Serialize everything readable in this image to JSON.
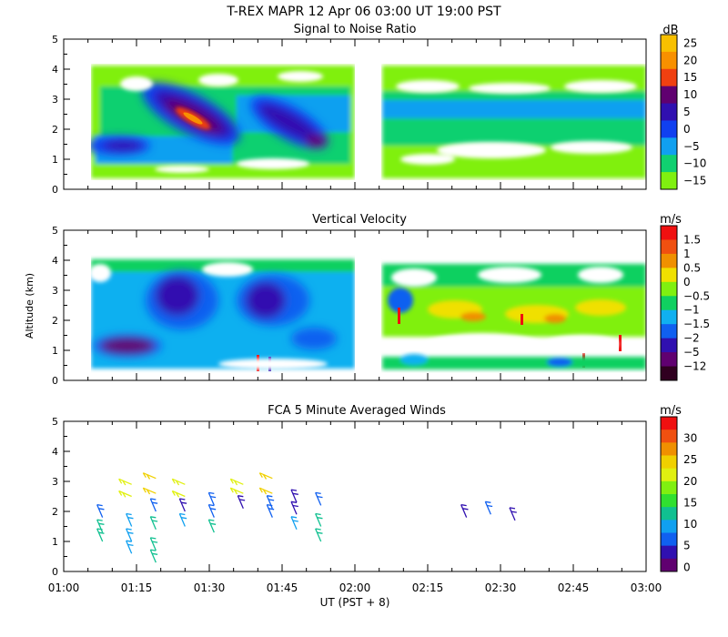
{
  "figure": {
    "title": "T-REX  MAPR 12 Apr 06  03:00 UT  19:00  PST",
    "xlabel": "UT  (PST + 8)",
    "ylabel": "Altitude (km)",
    "x_ticks": [
      "01:00",
      "01:15",
      "01:30",
      "01:45",
      "02:00",
      "02:15",
      "02:30",
      "02:45",
      "03:00"
    ]
  },
  "chart_data": [
    {
      "type": "heatmap",
      "title": "Signal to Noise Ratio",
      "colorbar_unit": "dB",
      "colorbar_ticks": [
        "25",
        "20",
        "15",
        "10",
        "5",
        "0",
        "−5",
        "−10",
        "−15"
      ],
      "colorbar_colors": [
        "#f8c000",
        "#f89000",
        "#f04010",
        "#600070",
        "#3010b0",
        "#1040f0",
        "#10a0f0",
        "#10d070",
        "#80f010"
      ],
      "ylim": [
        0,
        5
      ],
      "y_ticks": [
        "0",
        "1",
        "2",
        "3",
        "4",
        "5"
      ],
      "x_range": [
        "01:00",
        "03:00"
      ],
      "data_gap": [
        "01:59",
        "02:05"
      ],
      "features": [
        {
          "label": "peak",
          "time": "01:22",
          "altitude_km": 2.3,
          "value_db": 18
        },
        {
          "label": "peak",
          "time": "01:40",
          "altitude_km": 2.5,
          "value_db": 7
        },
        {
          "label": "peak",
          "time": "01:08",
          "altitude_km": 1.4,
          "value_db": 6
        }
      ]
    },
    {
      "type": "heatmap",
      "title": "Vertical Velocity",
      "colorbar_unit": "m/s",
      "colorbar_ticks": [
        "1.5",
        "1",
        "0.5",
        "0",
        "−0.5",
        "−1",
        "−1.5",
        "−2",
        "−5",
        "−12"
      ],
      "colorbar_colors": [
        "#f01010",
        "#f05010",
        "#f09000",
        "#f0e000",
        "#80f010",
        "#10d060",
        "#10b0f0",
        "#1060f0",
        "#3010b0",
        "#600070",
        "#300020"
      ],
      "ylim": [
        0,
        5
      ],
      "y_ticks": [
        "0",
        "1",
        "2",
        "3",
        "4",
        "5"
      ],
      "x_range": [
        "01:00",
        "03:00"
      ],
      "data_gap": [
        "01:59",
        "02:05"
      ]
    },
    {
      "type": "scatter",
      "title": "FCA 5 Minute Averaged Winds",
      "colorbar_unit": "m/s",
      "colorbar_ticks": [
        "30",
        "25",
        "20",
        "15",
        "10",
        "5",
        "0"
      ],
      "colorbar_colors": [
        "#f01010",
        "#f05010",
        "#f09000",
        "#f0d000",
        "#e0f010",
        "#80f010",
        "#30e030",
        "#10c090",
        "#10a0f0",
        "#1060f0",
        "#3010b0",
        "#600070"
      ],
      "ylim": [
        0,
        5
      ],
      "y_ticks": [
        "0",
        "1",
        "2",
        "3",
        "4",
        "5"
      ],
      "x_range": [
        "01:00",
        "03:00"
      ],
      "barb_columns": [
        {
          "time": "01:08",
          "altitudes_km": [
            1.8,
            1.3,
            1.0
          ]
        },
        {
          "time": "01:14",
          "altitudes_km": [
            2.9,
            2.5,
            1.5,
            1.0,
            0.6
          ]
        },
        {
          "time": "01:19",
          "altitudes_km": [
            3.1,
            2.6,
            2.0,
            1.4,
            0.7,
            0.3
          ]
        },
        {
          "time": "01:25",
          "altitudes_km": [
            2.9,
            2.5,
            2.0,
            1.5
          ]
        },
        {
          "time": "01:31",
          "altitudes_km": [
            2.2,
            1.8,
            1.3
          ]
        },
        {
          "time": "01:37",
          "altitudes_km": [
            2.9,
            2.6,
            2.1
          ]
        },
        {
          "time": "01:43",
          "altitudes_km": [
            3.1,
            2.6,
            2.1,
            1.8
          ]
        },
        {
          "time": "01:48",
          "altitudes_km": [
            2.3,
            1.9,
            1.4
          ]
        },
        {
          "time": "01:53",
          "altitudes_km": [
            2.2,
            1.5,
            1.0
          ]
        },
        {
          "time": "02:23",
          "altitudes_km": [
            1.8
          ]
        },
        {
          "time": "02:28",
          "altitudes_km": [
            1.9
          ]
        },
        {
          "time": "02:33",
          "altitudes_km": [
            1.7
          ]
        }
      ]
    }
  ]
}
